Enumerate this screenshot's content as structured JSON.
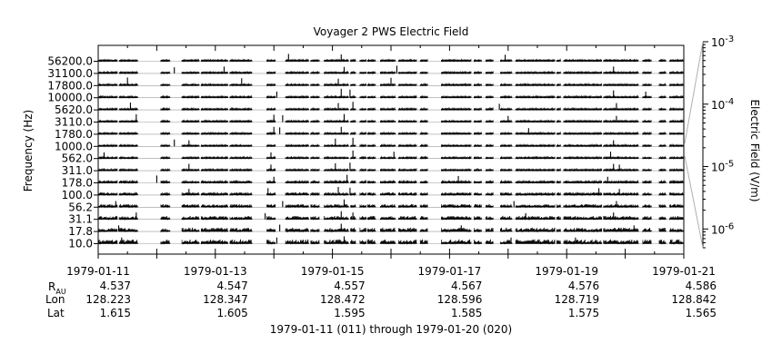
{
  "chart_data": {
    "type": "line",
    "title": "Voyager 2 PWS Electric Field",
    "ylabel": "Frequency (Hz)",
    "right_axis_label": "Electric Field (V/m)",
    "channels": [
      "10.0",
      "17.8",
      "31.1",
      "56.2",
      "100.0",
      "178.0",
      "311.0",
      "562.0",
      "1000.0",
      "1780.0",
      "3110.0",
      "5620.0",
      "10000.0",
      "17800.0",
      "31100.0",
      "56200.0"
    ],
    "right_axis": {
      "scale": "log",
      "range": [
        5e-07,
        0.001
      ],
      "ticks": [
        {
          "value": 1e-06,
          "base": "10",
          "exp": "-6"
        },
        {
          "value": 1e-05,
          "base": "10",
          "exp": "-5"
        },
        {
          "value": 0.0001,
          "base": "10",
          "exp": "-4"
        },
        {
          "value": 0.001,
          "base": "10",
          "exp": "-3"
        }
      ]
    },
    "x_range_days": [
      0,
      10
    ],
    "x_ticks": [
      {
        "day": 0,
        "date": "1979-01-11",
        "r_au": "4.537",
        "lon": "128.223",
        "lat": "1.615"
      },
      {
        "day": 2,
        "date": "1979-01-13",
        "r_au": "4.547",
        "lon": "128.347",
        "lat": "1.605"
      },
      {
        "day": 4,
        "date": "1979-01-15",
        "r_au": "4.557",
        "lon": "128.472",
        "lat": "1.595"
      },
      {
        "day": 6,
        "date": "1979-01-17",
        "r_au": "4.567",
        "lon": "128.596",
        "lat": "1.585"
      },
      {
        "day": 8,
        "date": "1979-01-19",
        "r_au": "4.576",
        "lon": "128.719",
        "lat": "1.575"
      },
      {
        "day": 10,
        "date": "1979-01-21",
        "r_au": "4.586",
        "lon": "128.842",
        "lat": "1.565"
      }
    ],
    "row_labels": {
      "r_au_main": "R",
      "r_au_sub": "AU",
      "lon": "Lon",
      "lat": "Lat"
    },
    "date_range_label": "1979-01-11 (011) through 1979-01-20 (020)",
    "data_segments_days": [
      [
        0.0,
        0.33
      ],
      [
        0.36,
        0.68
      ],
      [
        1.07,
        1.23
      ],
      [
        1.43,
        1.73
      ],
      [
        1.76,
        2.22
      ],
      [
        2.25,
        2.63
      ],
      [
        2.88,
        3.03
      ],
      [
        3.2,
        3.6
      ],
      [
        3.63,
        3.78
      ],
      [
        3.86,
        4.28
      ],
      [
        4.31,
        4.4
      ],
      [
        4.47,
        4.58
      ],
      [
        4.6,
        4.74
      ],
      [
        4.82,
        5.08
      ],
      [
        5.13,
        5.44
      ],
      [
        5.5,
        5.63
      ],
      [
        5.86,
        6.37
      ],
      [
        6.42,
        6.55
      ],
      [
        6.62,
        6.75
      ],
      [
        6.87,
        7.07
      ],
      [
        7.13,
        7.8
      ],
      [
        7.83,
        7.9
      ],
      [
        7.95,
        8.6
      ],
      [
        8.63,
        9.23
      ],
      [
        9.3,
        9.45
      ],
      [
        9.58,
        9.7
      ],
      [
        9.76,
        10.0
      ]
    ],
    "spikes": [
      {
        "channel": "56200.0",
        "day": 3.25,
        "value": 4e-06
      },
      {
        "channel": "56200.0",
        "day": 4.15,
        "value": 3e-06
      },
      {
        "channel": "56200.0",
        "day": 6.95,
        "value": 2.5e-06
      },
      {
        "channel": "31100.0",
        "day": 1.3,
        "value": 2e-06
      },
      {
        "channel": "31100.0",
        "day": 2.15,
        "value": 3e-06
      },
      {
        "channel": "31100.0",
        "day": 4.2,
        "value": 2.5e-06
      },
      {
        "channel": "31100.0",
        "day": 5.1,
        "value": 5e-06
      },
      {
        "channel": "31100.0",
        "day": 8.8,
        "value": 3e-06
      },
      {
        "channel": "17800.0",
        "day": 0.5,
        "value": 6e-06
      },
      {
        "channel": "17800.0",
        "day": 2.45,
        "value": 4e-06
      },
      {
        "channel": "17800.0",
        "day": 4.1,
        "value": 3e-06
      },
      {
        "channel": "17800.0",
        "day": 5.0,
        "value": 5e-06
      },
      {
        "channel": "10000.0",
        "day": 3.05,
        "value": 2e-06
      },
      {
        "channel": "10000.0",
        "day": 4.15,
        "value": 1e-05
      },
      {
        "channel": "10000.0",
        "day": 4.3,
        "value": 6e-06
      },
      {
        "channel": "10000.0",
        "day": 8.8,
        "value": 4e-06
      },
      {
        "channel": "10000.0",
        "day": 9.35,
        "value": 2e-06
      },
      {
        "channel": "5620.0",
        "day": 0.55,
        "value": 4e-06
      },
      {
        "channel": "5620.0",
        "day": 4.1,
        "value": 3e-06
      },
      {
        "channel": "5620.0",
        "day": 4.35,
        "value": 6e-06
      },
      {
        "channel": "5620.0",
        "day": 6.85,
        "value": 2e-06
      },
      {
        "channel": "5620.0",
        "day": 8.85,
        "value": 3e-06
      },
      {
        "channel": "3110.0",
        "day": 0.65,
        "value": 5e-06
      },
      {
        "channel": "3110.0",
        "day": 3.0,
        "value": 4e-06
      },
      {
        "channel": "3110.0",
        "day": 3.15,
        "value": 3e-06
      },
      {
        "channel": "3110.0",
        "day": 4.2,
        "value": 6e-06
      },
      {
        "channel": "3110.0",
        "day": 8.85,
        "value": 2e-06
      },
      {
        "channel": "3110.0",
        "day": 7.0,
        "value": 2e-06
      },
      {
        "channel": "1780.0",
        "day": 3.0,
        "value": 4e-06
      },
      {
        "channel": "1780.0",
        "day": 3.1,
        "value": 3e-06
      },
      {
        "channel": "1780.0",
        "day": 4.15,
        "value": 4e-06
      },
      {
        "channel": "1780.0",
        "day": 7.35,
        "value": 2e-06
      },
      {
        "channel": "1000.0",
        "day": 1.3,
        "value": 3e-06
      },
      {
        "channel": "1000.0",
        "day": 1.55,
        "value": 2e-06
      },
      {
        "channel": "1000.0",
        "day": 4.05,
        "value": 5e-06
      },
      {
        "channel": "1000.0",
        "day": 4.35,
        "value": 8e-06
      },
      {
        "channel": "1000.0",
        "day": 8.8,
        "value": 2e-06
      },
      {
        "channel": "562.0",
        "day": 0.1,
        "value": 2e-06
      },
      {
        "channel": "562.0",
        "day": 2.95,
        "value": 2e-06
      },
      {
        "channel": "562.0",
        "day": 4.35,
        "value": 6e-06
      },
      {
        "channel": "562.0",
        "day": 5.05,
        "value": 3e-06
      },
      {
        "channel": "562.0",
        "day": 8.75,
        "value": 3e-06
      },
      {
        "channel": "311.0",
        "day": 1.55,
        "value": 3e-06
      },
      {
        "channel": "311.0",
        "day": 2.95,
        "value": 2e-06
      },
      {
        "channel": "311.0",
        "day": 4.05,
        "value": 4e-06
      },
      {
        "channel": "311.0",
        "day": 4.3,
        "value": 6e-06
      },
      {
        "channel": "311.0",
        "day": 8.8,
        "value": 3e-06
      },
      {
        "channel": "311.0",
        "day": 8.9,
        "value": 2e-06
      },
      {
        "channel": "178.0",
        "day": 1.0,
        "value": 4e-06
      },
      {
        "channel": "178.0",
        "day": 3.0,
        "value": 2e-06
      },
      {
        "channel": "178.0",
        "day": 4.25,
        "value": 6e-06
      },
      {
        "channel": "178.0",
        "day": 6.15,
        "value": 3e-06
      },
      {
        "channel": "178.0",
        "day": 8.7,
        "value": 2e-06
      },
      {
        "channel": "100.0",
        "day": 1.55,
        "value": 2e-06
      },
      {
        "channel": "100.0",
        "day": 2.9,
        "value": 3e-06
      },
      {
        "channel": "100.0",
        "day": 4.1,
        "value": 6e-06
      },
      {
        "channel": "100.0",
        "day": 4.3,
        "value": 4e-06
      },
      {
        "channel": "100.0",
        "day": 8.55,
        "value": 3e-06
      },
      {
        "channel": "100.0",
        "day": 8.9,
        "value": 2e-06
      },
      {
        "channel": "56.2",
        "day": 0.3,
        "value": 2e-06
      },
      {
        "channel": "56.2",
        "day": 3.15,
        "value": 2e-06
      },
      {
        "channel": "56.2",
        "day": 4.2,
        "value": 5e-06
      },
      {
        "channel": "56.2",
        "day": 7.1,
        "value": 2e-06
      },
      {
        "channel": "56.2",
        "day": 8.85,
        "value": 2e-06
      },
      {
        "channel": "31.1",
        "day": 0.65,
        "value": 3e-06
      },
      {
        "channel": "31.1",
        "day": 2.85,
        "value": 2e-06
      },
      {
        "channel": "31.1",
        "day": 4.15,
        "value": 6e-06
      },
      {
        "channel": "31.1",
        "day": 4.35,
        "value": 3e-06
      },
      {
        "channel": "31.1",
        "day": 7.3,
        "value": 2e-06
      },
      {
        "channel": "31.1",
        "day": 8.8,
        "value": 3e-06
      },
      {
        "channel": "17.8",
        "day": 0.35,
        "value": 2e-06
      },
      {
        "channel": "17.8",
        "day": 3.1,
        "value": 3e-06
      },
      {
        "channel": "17.8",
        "day": 4.15,
        "value": 5e-06
      },
      {
        "channel": "17.8",
        "day": 6.2,
        "value": 2e-06
      },
      {
        "channel": "17.8",
        "day": 9.15,
        "value": 2e-06
      },
      {
        "channel": "10.0",
        "day": 0.4,
        "value": 2e-06
      },
      {
        "channel": "10.0",
        "day": 3.05,
        "value": 2e-06
      },
      {
        "channel": "10.0",
        "day": 4.2,
        "value": 4e-06
      },
      {
        "channel": "10.0",
        "day": 7.05,
        "value": 2e-06
      },
      {
        "channel": "10.0",
        "day": 8.15,
        "value": 2e-06
      }
    ],
    "grid": false,
    "legend": "none",
    "colors": {
      "trace": "#000000",
      "baseline": "#9a9a9a",
      "connector": "#b0b0b0"
    }
  }
}
